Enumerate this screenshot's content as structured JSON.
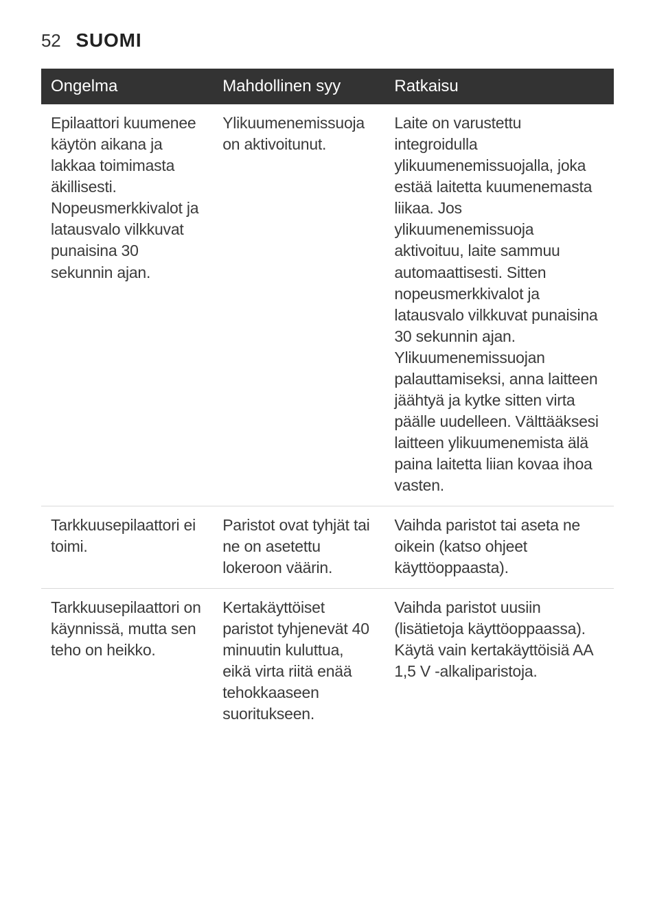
{
  "page": {
    "number": "52",
    "section": "SUOMI"
  },
  "table": {
    "headers": {
      "problem": "Ongelma",
      "cause": "Mahdollinen syy",
      "solution": "Ratkaisu"
    },
    "rows": [
      {
        "problem": "Epilaattori kuumenee käytön aikana ja lakkaa toimimasta äkillisesti. Nopeusmerkkivalot ja latausvalo vilkkuvat punaisina 30 sekunnin ajan.",
        "cause": "Ylikuumenemissuoja on aktivoitunut.",
        "solution": "Laite on varustettu integroidulla ylikuumenemissuojalla, joka estää laitetta kuumenemasta liikaa. Jos ylikuumenemissuoja aktivoituu, laite sammuu automaattisesti. Sitten nopeusmerkkivalot ja latausvalo vilkkuvat punaisina 30 sekunnin ajan. Ylikuumenemissuojan palauttamiseksi, anna laitteen jäähtyä ja kytke sitten virta päälle uudelleen. Välttääksesi laitteen ylikuumenemista älä paina laitetta liian kovaa ihoa vasten."
      },
      {
        "problem": "Tarkkuusepilaattori ei toimi.",
        "cause": "Paristot ovat tyhjät tai ne on asetettu lokeroon väärin.",
        "solution": "Vaihda paristot tai aseta ne oikein (katso ohjeet käyttöoppaasta)."
      },
      {
        "problem": "Tarkkuusepilaattori on käynnissä, mutta sen teho on heikko.",
        "cause": "Kertakäyttöiset paristot tyhjenevät 40 minuutin kuluttua, eikä virta riitä enää tehokkaaseen suoritukseen.",
        "solution": "Vaihda paristot uusiin (lisätietoja käyttöoppaassa). Käytä vain kertakäyttöisiä AA 1,5 V -alkaliparistoja."
      }
    ]
  }
}
